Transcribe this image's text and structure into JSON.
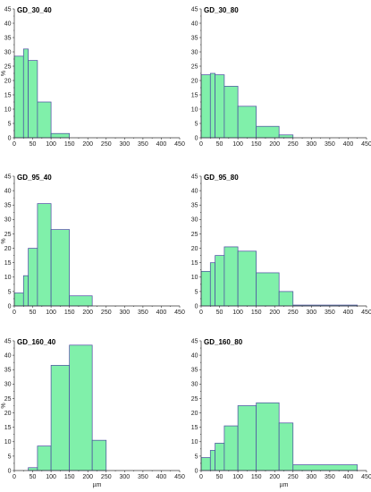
{
  "figure": {
    "x_unit_label": "µm",
    "y_unit_label": "%"
  },
  "chart_data": [
    {
      "type": "bar",
      "title": "GD_30_40",
      "ylabel": "%",
      "xlabel": "",
      "xlim": [
        0,
        450
      ],
      "ylim": [
        0,
        45
      ],
      "xticks": [
        0,
        50,
        100,
        150,
        200,
        250,
        300,
        350,
        400,
        450
      ],
      "yticks": [
        0,
        5,
        10,
        15,
        20,
        25,
        30,
        35,
        40,
        45
      ],
      "bins": [
        [
          0,
          25
        ],
        [
          25,
          38
        ],
        [
          38,
          63
        ],
        [
          63,
          100
        ],
        [
          100,
          150
        ]
      ],
      "values": [
        28.5,
        31,
        27,
        12.5,
        1.5
      ]
    },
    {
      "type": "bar",
      "title": "GD_30_80",
      "ylabel": "",
      "xlabel": "",
      "xlim": [
        0,
        450
      ],
      "ylim": [
        0,
        45
      ],
      "xticks": [
        0,
        50,
        100,
        150,
        200,
        250,
        300,
        350,
        400,
        450
      ],
      "yticks": [
        0,
        5,
        10,
        15,
        20,
        25,
        30,
        35,
        40,
        45
      ],
      "bins": [
        [
          0,
          25
        ],
        [
          25,
          38
        ],
        [
          38,
          63
        ],
        [
          63,
          100
        ],
        [
          100,
          150
        ],
        [
          150,
          212
        ],
        [
          212,
          250
        ]
      ],
      "values": [
        22,
        22.5,
        22,
        18,
        11,
        4,
        1
      ]
    },
    {
      "type": "bar",
      "title": "GD_95_40",
      "ylabel": "%",
      "xlabel": "",
      "xlim": [
        0,
        450
      ],
      "ylim": [
        0,
        45
      ],
      "xticks": [
        0,
        50,
        100,
        150,
        200,
        250,
        300,
        350,
        400,
        450
      ],
      "yticks": [
        0,
        5,
        10,
        15,
        20,
        25,
        30,
        35,
        40,
        45
      ],
      "bins": [
        [
          0,
          25
        ],
        [
          25,
          38
        ],
        [
          38,
          63
        ],
        [
          63,
          100
        ],
        [
          100,
          150
        ],
        [
          150,
          212
        ]
      ],
      "values": [
        4.5,
        10.5,
        20,
        35.5,
        26.5,
        3.5
      ]
    },
    {
      "type": "bar",
      "title": "GD_95_80",
      "ylabel": "",
      "xlabel": "",
      "xlim": [
        0,
        450
      ],
      "ylim": [
        0,
        45
      ],
      "xticks": [
        0,
        50,
        100,
        150,
        200,
        250,
        300,
        350,
        400,
        450
      ],
      "yticks": [
        0,
        5,
        10,
        15,
        20,
        25,
        30,
        35,
        40,
        45
      ],
      "bins": [
        [
          0,
          25
        ],
        [
          25,
          38
        ],
        [
          38,
          63
        ],
        [
          63,
          100
        ],
        [
          100,
          150
        ],
        [
          150,
          212
        ],
        [
          212,
          250
        ],
        [
          250,
          425
        ]
      ],
      "values": [
        12,
        15,
        17.5,
        20.5,
        19,
        11.5,
        5,
        0.3
      ]
    },
    {
      "type": "bar",
      "title": "GD_160_40",
      "ylabel": "%",
      "xlabel": "µm",
      "xlim": [
        0,
        450
      ],
      "ylim": [
        0,
        45
      ],
      "xticks": [
        0,
        50,
        100,
        150,
        200,
        250,
        300,
        350,
        400,
        450
      ],
      "yticks": [
        0,
        5,
        10,
        15,
        20,
        25,
        30,
        35,
        40,
        45
      ],
      "bins": [
        [
          38,
          63
        ],
        [
          63,
          100
        ],
        [
          100,
          150
        ],
        [
          150,
          212
        ],
        [
          212,
          250
        ]
      ],
      "values": [
        1,
        8.5,
        36.5,
        43.5,
        10.5
      ]
    },
    {
      "type": "bar",
      "title": "GD_160_80",
      "ylabel": "",
      "xlabel": "µm",
      "xlim": [
        0,
        450
      ],
      "ylim": [
        0,
        45
      ],
      "xticks": [
        0,
        50,
        100,
        150,
        200,
        250,
        300,
        350,
        400,
        450
      ],
      "yticks": [
        0,
        5,
        10,
        15,
        20,
        25,
        30,
        35,
        40,
        45
      ],
      "bins": [
        [
          0,
          25
        ],
        [
          25,
          38
        ],
        [
          38,
          63
        ],
        [
          63,
          100
        ],
        [
          100,
          150
        ],
        [
          150,
          212
        ],
        [
          212,
          250
        ],
        [
          250,
          425
        ]
      ],
      "values": [
        4.5,
        7,
        9.5,
        15.5,
        22.5,
        23.5,
        16.5,
        2
      ]
    }
  ]
}
